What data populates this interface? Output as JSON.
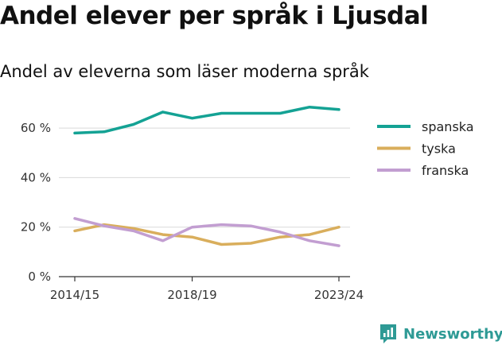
{
  "title": "Andel elever per språk i Ljusdal",
  "subtitle": "Andel av eleverna som läser moderna språk",
  "brand": {
    "name": "Newsworthy",
    "icon": "newsworthy-logo-icon",
    "color": "#2e9a95"
  },
  "chart_data": {
    "type": "line",
    "title": "Andel elever per språk i Ljusdal",
    "subtitle": "Andel av eleverna som läser moderna språk",
    "x": [
      "2014/15",
      "2015/16",
      "2016/17",
      "2017/18",
      "2018/19",
      "2019/20",
      "2020/21",
      "2021/22",
      "2022/23",
      "2023/24"
    ],
    "x_tick_labels": [
      "2014/15",
      "2018/19",
      "2023/24"
    ],
    "y_ticks": [
      0,
      20,
      40,
      60
    ],
    "y_tick_labels": [
      "0 %",
      "20 %",
      "40 %",
      "60 %"
    ],
    "ylim": [
      0,
      70
    ],
    "grid": true,
    "legend_position": "top-right",
    "series": [
      {
        "name": "spanska",
        "color": "#14a294",
        "values": [
          58.0,
          58.5,
          61.5,
          66.5,
          64.0,
          66.0,
          66.0,
          66.0,
          68.5,
          67.5
        ]
      },
      {
        "name": "tyska",
        "color": "#d9ae5c",
        "values": [
          18.5,
          21.0,
          19.5,
          17.0,
          16.0,
          13.0,
          13.5,
          16.0,
          17.0,
          20.0
        ]
      },
      {
        "name": "franska",
        "color": "#c29ed1",
        "values": [
          23.5,
          20.5,
          18.5,
          14.5,
          20.0,
          21.0,
          20.5,
          18.0,
          14.5,
          12.5
        ]
      }
    ]
  }
}
